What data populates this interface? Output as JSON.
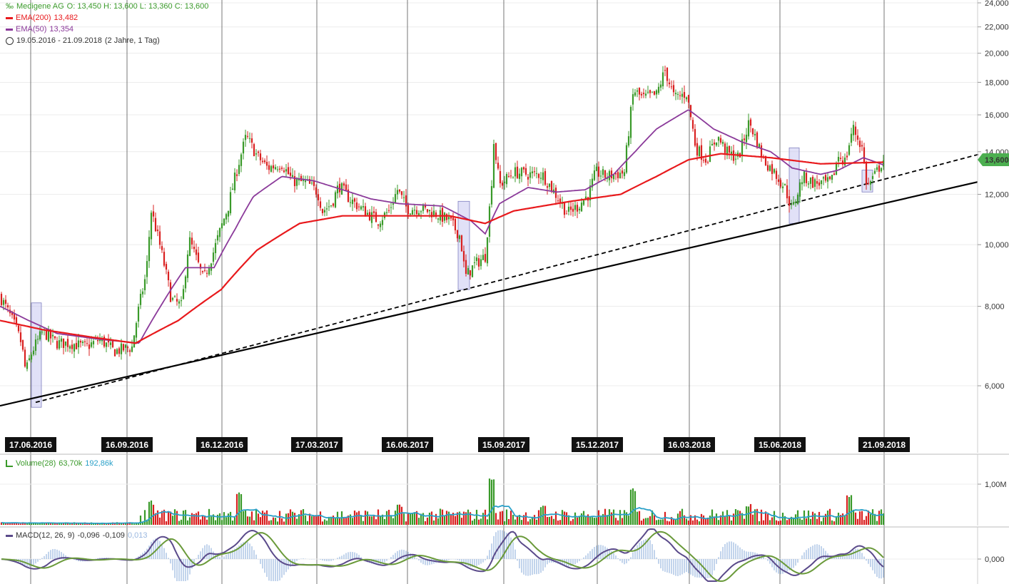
{
  "legend": {
    "symbol": "‰",
    "name": "Medigene AG",
    "ohlc": "O: 13,450  H: 13,600  L: 13,360  C: 13,600",
    "ema200_label": "EMA(200)",
    "ema200_value": "13,482",
    "ema50_label": "EMA(50)",
    "ema50_value": "13,354",
    "range_text": "19.05.2016 - 21.09.2018",
    "range_span": "(2 Jahre, 1 Tag)",
    "volume_label": "Volume(28)",
    "volume_v1": "63,70k",
    "volume_v2": "192,86k",
    "macd_label": "MACD(12, 26, 9)",
    "macd_v1": "-0,096",
    "macd_v2": "-0,109",
    "macd_v3": "0,013"
  },
  "colors": {
    "up": "#3a9a2a",
    "down": "#d92020",
    "ema200": "#e8191c",
    "ema50": "#8b3a9a",
    "volume_ma": "#2aa0c8",
    "macd": "#5a4a8a",
    "signal": "#6a9a3a",
    "hist": "#9ab8e0",
    "highlight": "#c8c8f0",
    "price_tag": "#4caf50"
  },
  "chart_data": {
    "type": "candlestick",
    "period": "19.05.2016 - 21.09.2018",
    "y_axis_ticks": [
      "24,000",
      "22,000",
      "20,000",
      "18,000",
      "16,000",
      "14,000",
      "12,000",
      "10,000",
      "8,000",
      "6,000"
    ],
    "y_axis_values": [
      24,
      22,
      20,
      18,
      16,
      14,
      12,
      10,
      8,
      6
    ],
    "y_scale": "log",
    "last_price_tag": "13,600",
    "x_date_labels": [
      "17.06.2016",
      "16.09.2016",
      "16.12.2016",
      "17.03.2017",
      "16.06.2017",
      "15.09.2017",
      "15.12.2017",
      "16.03.2018",
      "15.06.2018",
      "21.09.2018"
    ],
    "price_keypoints": [
      [
        0,
        8.3
      ],
      [
        10,
        7.9
      ],
      [
        22,
        7.4
      ],
      [
        30,
        7.0
      ],
      [
        36,
        6.3
      ],
      [
        45,
        6.8
      ],
      [
        60,
        7.3
      ],
      [
        80,
        7.0
      ],
      [
        100,
        7.0
      ],
      [
        120,
        6.9
      ],
      [
        140,
        7.1
      ],
      [
        160,
        6.8
      ],
      [
        185,
        6.9
      ],
      [
        195,
        8.0
      ],
      [
        205,
        9.0
      ],
      [
        212,
        11.3
      ],
      [
        222,
        10.2
      ],
      [
        240,
        8.2
      ],
      [
        255,
        8.0
      ],
      [
        265,
        10.2
      ],
      [
        285,
        8.8
      ],
      [
        300,
        9.8
      ],
      [
        320,
        11.5
      ],
      [
        335,
        13.5
      ],
      [
        345,
        14.8
      ],
      [
        360,
        13.8
      ],
      [
        375,
        13.2
      ],
      [
        395,
        13.4
      ],
      [
        410,
        12.6
      ],
      [
        430,
        12.5
      ],
      [
        445,
        12.1
      ],
      [
        452,
        11.3
      ],
      [
        465,
        11.6
      ],
      [
        475,
        12.4
      ],
      [
        490,
        11.8
      ],
      [
        510,
        11.3
      ],
      [
        530,
        10.9
      ],
      [
        545,
        11.3
      ],
      [
        557,
        12.2
      ],
      [
        570,
        11.4
      ],
      [
        590,
        11.4
      ],
      [
        610,
        11.2
      ],
      [
        630,
        10.9
      ],
      [
        645,
        10.3
      ],
      [
        652,
        8.9
      ],
      [
        665,
        9.3
      ],
      [
        680,
        9.6
      ],
      [
        688,
        12.0
      ],
      [
        692,
        14.5
      ],
      [
        700,
        12.4
      ],
      [
        720,
        13.0
      ],
      [
        740,
        12.9
      ],
      [
        760,
        12.9
      ],
      [
        785,
        11.7
      ],
      [
        795,
        11.2
      ],
      [
        810,
        11.5
      ],
      [
        825,
        12.0
      ],
      [
        835,
        13.0
      ],
      [
        850,
        12.8
      ],
      [
        875,
        13.0
      ],
      [
        888,
        17.5
      ],
      [
        900,
        17.0
      ],
      [
        920,
        17.2
      ],
      [
        932,
        18.8
      ],
      [
        945,
        17.0
      ],
      [
        962,
        17.3
      ],
      [
        975,
        14.2
      ],
      [
        990,
        13.6
      ],
      [
        1005,
        14.8
      ],
      [
        1020,
        13.9
      ],
      [
        1035,
        13.7
      ],
      [
        1050,
        15.6
      ],
      [
        1058,
        14.8
      ],
      [
        1070,
        13.6
      ],
      [
        1085,
        13.0
      ],
      [
        1100,
        12.3
      ],
      [
        1110,
        11.3
      ],
      [
        1125,
        12.8
      ],
      [
        1140,
        12.5
      ],
      [
        1165,
        12.5
      ],
      [
        1175,
        13.8
      ],
      [
        1185,
        13.5
      ],
      [
        1195,
        15.3
      ],
      [
        1208,
        14.2
      ],
      [
        1215,
        12.3
      ],
      [
        1225,
        12.8
      ],
      [
        1238,
        13.6
      ]
    ],
    "ema200_keypoints": [
      [
        0,
        7.6
      ],
      [
        60,
        7.35
      ],
      [
        130,
        7.15
      ],
      [
        190,
        7.0
      ],
      [
        250,
        7.6
      ],
      [
        310,
        8.5
      ],
      [
        360,
        9.8
      ],
      [
        420,
        10.8
      ],
      [
        480,
        11.1
      ],
      [
        560,
        11.1
      ],
      [
        630,
        11.1
      ],
      [
        680,
        10.8
      ],
      [
        720,
        11.3
      ],
      [
        800,
        11.7
      ],
      [
        870,
        12.0
      ],
      [
        920,
        12.8
      ],
      [
        965,
        13.6
      ],
      [
        1010,
        13.9
      ],
      [
        1080,
        13.7
      ],
      [
        1150,
        13.4
      ],
      [
        1238,
        13.48
      ]
    ],
    "ema50_keypoints": [
      [
        0,
        8.0
      ],
      [
        40,
        7.6
      ],
      [
        80,
        7.25
      ],
      [
        140,
        7.1
      ],
      [
        195,
        7.0
      ],
      [
        225,
        8.0
      ],
      [
        260,
        9.2
      ],
      [
        300,
        9.2
      ],
      [
        330,
        10.6
      ],
      [
        355,
        11.9
      ],
      [
        395,
        12.8
      ],
      [
        440,
        12.6
      ],
      [
        470,
        12.3
      ],
      [
        520,
        11.8
      ],
      [
        560,
        11.6
      ],
      [
        620,
        11.5
      ],
      [
        660,
        10.9
      ],
      [
        680,
        10.4
      ],
      [
        700,
        11.6
      ],
      [
        740,
        12.3
      ],
      [
        780,
        12.1
      ],
      [
        820,
        12.2
      ],
      [
        860,
        12.9
      ],
      [
        890,
        14.0
      ],
      [
        920,
        15.2
      ],
      [
        965,
        16.3
      ],
      [
        1000,
        15.2
      ],
      [
        1040,
        14.5
      ],
      [
        1080,
        14.0
      ],
      [
        1110,
        13.2
      ],
      [
        1150,
        12.9
      ],
      [
        1175,
        13.1
      ],
      [
        1210,
        13.7
      ],
      [
        1238,
        13.35
      ]
    ],
    "trendlines": [
      {
        "style": "solid",
        "start_x": 0,
        "start_price": 5.58,
        "end_x": 1370,
        "end_price": 12.55
      },
      {
        "style": "dashed",
        "start_x": 50,
        "start_price": 5.65,
        "end_x": 1375,
        "end_price": 13.9
      }
    ],
    "highlight_zones": [
      {
        "x_from": 44,
        "x_to": 58,
        "price_high": 8.1,
        "price_low": 5.55
      },
      {
        "x_from": 642,
        "x_to": 658,
        "price_high": 11.7,
        "price_low": 8.5
      },
      {
        "x_from": 1106,
        "x_to": 1120,
        "price_high": 14.2,
        "price_low": 10.8
      },
      {
        "x_from": 1208,
        "x_to": 1223,
        "price_high": 13.1,
        "price_low": 12.1
      }
    ],
    "volume": {
      "axis_label": "1,00M",
      "axis_value": 1000000,
      "range_k": [
        5,
        1300
      ]
    },
    "macd": {
      "axis_label": "0,000",
      "axis_value": 0
    },
    "gridlines": true,
    "vertical_date_lines": true
  }
}
